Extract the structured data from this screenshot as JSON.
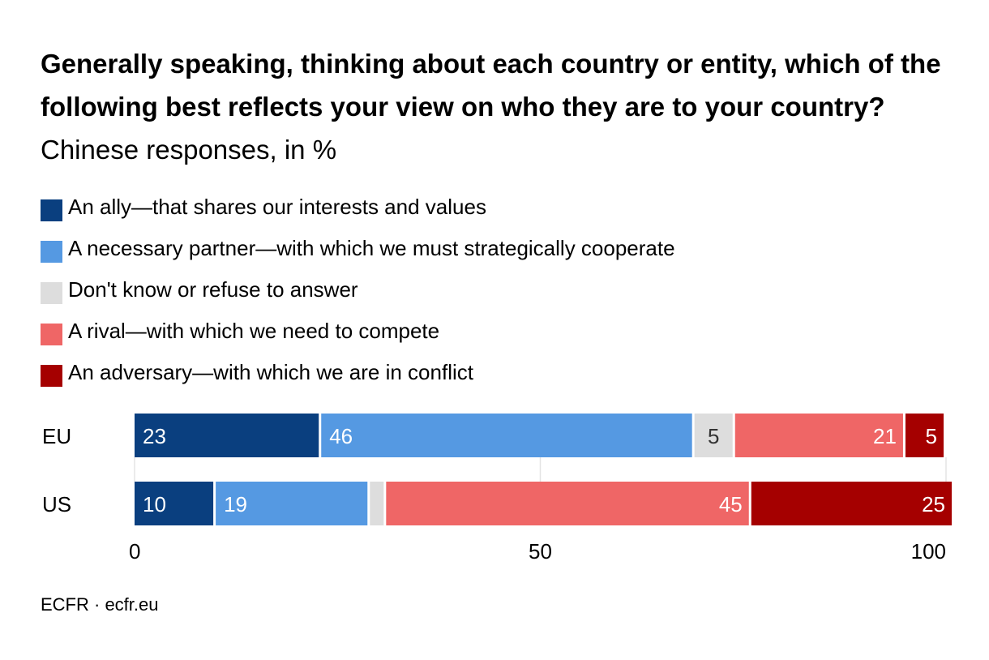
{
  "title_bold": "Generally speaking, thinking about each country or entity, which of the following best reflects your view on who they are to your country?",
  "title_light": "Chinese responses, in %",
  "source": "ECFR · ecfr.eu",
  "colors": [
    "#0a3f7f",
    "#5599e2",
    "#dddddd",
    "#ef6666",
    "#a50000"
  ],
  "chart_data": {
    "type": "bar",
    "orientation": "horizontal",
    "stacked": true,
    "categories": [
      "EU",
      "US"
    ],
    "series": [
      {
        "name": "An ally—that shares our interests and values",
        "values": [
          23,
          10
        ]
      },
      {
        "name": "A necessary partner—with which we must strategically cooperate",
        "values": [
          46,
          19
        ]
      },
      {
        "name": "Don't know or refuse to answer",
        "values": [
          5,
          2
        ]
      },
      {
        "name": "A rival—with which we need to compete",
        "values": [
          21,
          45
        ]
      },
      {
        "name": "An adversary—with which we are in conflict",
        "values": [
          5,
          25
        ]
      }
    ],
    "data_labels": [
      [
        "23",
        "10"
      ],
      [
        "46",
        "19"
      ],
      [
        "5",
        ""
      ],
      [
        "21",
        "45"
      ],
      [
        "5",
        "25"
      ]
    ],
    "xlim": [
      0,
      100
    ],
    "xticks": [
      "0",
      "50",
      "100"
    ],
    "legend_position": "top-left",
    "grid": true
  }
}
